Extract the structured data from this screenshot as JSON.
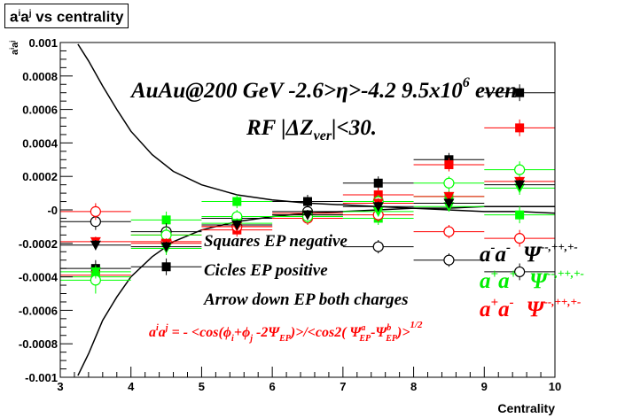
{
  "chart_data": {
    "type": "scatter",
    "title": "aiaj vs centrality",
    "title_parts": {
      "a1": "a",
      "i": "i",
      "a2": "a",
      "j": "j",
      "rest": " vs centrality"
    },
    "xlabel": "Centrality",
    "ylabel": "aiaj",
    "xlim": [
      3,
      10
    ],
    "ylim": [
      -0.001,
      0.001
    ],
    "xticks": [
      "3",
      "4",
      "5",
      "6",
      "7",
      "8",
      "9",
      "10"
    ],
    "yticks": [
      "-0.001",
      "-0.0008",
      "-0.0006",
      "-0.0004",
      "-0.0002",
      "-0",
      "0.0002",
      "0.0004",
      "0.0006",
      "0.0008",
      "0.001"
    ],
    "annotations": {
      "line1": "AuAu@200 GeV -2.6>η>-4.2  9.5x10",
      "line1_sup": "6",
      "line1_end": " even",
      "line2_a": "RF |ΔZ",
      "line2_sub": "ver",
      "line2_b": "|<30.",
      "legend_squares": "Squares EP negative",
      "legend_circles": "Cicles EP positive",
      "legend_arrows": "Arrow down EP both charges",
      "formula_a": "a",
      "formula_i": "i",
      "formula_j": "j",
      "formula_body": " = - <cos(ϕ",
      "formula_phi_j": "+ϕ",
      "formula_psi": " -2Ψ",
      "formula_ep": "EP",
      "formula_mid": ")>/<cos2( Ψ",
      "formula_a_sup": "a",
      "formula_minus": "-Ψ",
      "formula_b_sup": "b",
      "formula_end": ")>",
      "formula_power": "1/2",
      "label_mm": "a",
      "label_mm_sup": "-",
      "label_mm_psi": "Ψ",
      "label_mm_psi_sup": "--,++,+-",
      "label_pp": "a",
      "label_pp_sup": "+",
      "label_pp_psi": "Ψ",
      "label_pp_psi_sup": "--,++,+-",
      "label_pm_sup1": "+",
      "label_pm_sup2": "-",
      "label_pm_psi": "Ψ",
      "label_pm_psi_sup": "--,++,+-"
    },
    "colors": {
      "black": "#000000",
      "red": "#ff0000",
      "green": "#00ff00"
    },
    "series": [
      {
        "marker": "square",
        "color": "#000000",
        "x": [
          3.5,
          4.5,
          5.5,
          6.5,
          7.5,
          8.5,
          9.5
        ],
        "y": [
          -0.00035,
          -0.00034,
          -5e-05,
          5e-05,
          0.00016,
          0.0003,
          0.0007
        ],
        "err": [
          5e-05,
          5e-05,
          4e-05,
          4e-05,
          4e-05,
          4e-05,
          5e-05
        ]
      },
      {
        "marker": "square",
        "color": "#ff0000",
        "x": [
          3.5,
          4.5,
          5.5,
          6.5,
          7.5,
          8.5,
          9.5
        ],
        "y": [
          -0.00039,
          -0.00015,
          -0.00012,
          -2e-05,
          9e-05,
          0.00027,
          0.00049
        ],
        "err": [
          5e-05,
          5e-05,
          4e-05,
          4e-05,
          4e-05,
          4e-05,
          5e-05
        ]
      },
      {
        "marker": "square",
        "color": "#00ff00",
        "x": [
          3.5,
          4.5,
          5.5,
          6.5,
          7.5,
          8.5,
          9.5
        ],
        "y": [
          -0.0004,
          -6e-05,
          5e-05,
          -4e-05,
          -5e-05,
          8e-05,
          -3e-05
        ],
        "err": [
          5e-05,
          5e-05,
          4e-05,
          4e-05,
          4e-05,
          4e-05,
          5e-05
        ]
      },
      {
        "marker": "circle",
        "color": "#000000",
        "x": [
          3.5,
          4.5,
          5.5,
          6.5,
          7.5,
          8.5,
          9.5
        ],
        "y": [
          -7e-05,
          -0.00013,
          -5e-05,
          -1e-05,
          -0.00022,
          -0.0003,
          -0.00037
        ],
        "err": [
          5e-05,
          5e-05,
          4e-05,
          4e-05,
          4e-05,
          4e-05,
          5e-05
        ]
      },
      {
        "marker": "circle",
        "color": "#ff0000",
        "x": [
          3.5,
          4.5,
          5.5,
          6.5,
          7.5,
          8.5,
          9.5
        ],
        "y": [
          -1e-05,
          -0.00019,
          -0.0001,
          -5e-05,
          -3e-05,
          -0.00013,
          -0.00017
        ],
        "err": [
          5e-05,
          5e-05,
          4e-05,
          4e-05,
          4e-05,
          4e-05,
          5e-05
        ]
      },
      {
        "marker": "circle",
        "color": "#00ff00",
        "x": [
          3.5,
          4.5,
          5.5,
          6.5,
          7.5,
          8.5,
          9.5
        ],
        "y": [
          -0.00042,
          -0.00015,
          -4e-05,
          -4e-05,
          5e-05,
          0.00016,
          0.00024
        ],
        "err": [
          8e-05,
          5e-05,
          4e-05,
          4e-05,
          4e-05,
          4e-05,
          5e-05
        ]
      },
      {
        "marker": "triangle-down",
        "color": "#ff0000",
        "x": [
          3.5,
          4.5,
          5.5,
          6.5,
          7.5,
          8.5,
          9.5
        ],
        "y": [
          -0.00019,
          -0.0002,
          -0.0001,
          -3e-05,
          4e-05,
          8e-05,
          0.00017
        ],
        "err": [
          3e-05,
          3e-05,
          3e-05,
          3e-05,
          3e-05,
          3e-05,
          3e-05
        ]
      },
      {
        "marker": "triangle-down",
        "color": "#00ff00",
        "x": [
          3.5,
          4.5,
          5.5,
          6.5,
          7.5,
          8.5,
          9.5
        ],
        "y": [
          -0.00037,
          -0.00023,
          -8e-05,
          -3e-05,
          -1e-05,
          2e-05,
          0.00013
        ],
        "err": [
          4e-05,
          4e-05,
          3e-05,
          3e-05,
          3e-05,
          3e-05,
          4e-05
        ]
      },
      {
        "marker": "triangle-down",
        "color": "#000000",
        "x": [
          3.5,
          4.5,
          5.5,
          6.5,
          7.5,
          8.5,
          9.5
        ],
        "y": [
          -0.00021,
          -0.00022,
          -9e-05,
          -3e-05,
          2e-05,
          4e-05,
          0.00015
        ],
        "err": [
          3e-05,
          3e-05,
          3e-05,
          3e-05,
          3e-05,
          3e-05,
          3e-05
        ]
      }
    ],
    "curves": [
      {
        "name": "upper",
        "x": [
          3.25,
          3.4,
          3.6,
          3.8,
          4.0,
          4.3,
          4.6,
          5.0,
          5.5,
          6.0,
          6.5,
          7.0,
          7.5,
          8.0,
          8.5,
          9.0,
          9.5,
          10.0
        ],
        "y": [
          0.00099,
          0.00089,
          0.00074,
          0.0006,
          0.00047,
          0.00033,
          0.00023,
          0.00015,
          9e-05,
          6e-05,
          4e-05,
          3e-05,
          2e-05,
          1e-05,
          0.0,
          -1e-05,
          -1e-05,
          -2e-05
        ]
      },
      {
        "name": "lower",
        "x": [
          3.25,
          3.4,
          3.6,
          3.8,
          4.0,
          4.3,
          4.6,
          5.0,
          5.5,
          6.0,
          6.5,
          7.0,
          7.5,
          8.0,
          8.5,
          9.0,
          9.5,
          10.0
        ],
        "y": [
          -0.00099,
          -0.00086,
          -0.00066,
          -0.00052,
          -0.0004,
          -0.00028,
          -0.00019,
          -0.00012,
          -7e-05,
          -4e-05,
          -2e-05,
          -1e-05,
          0.0,
          1e-05,
          1e-05,
          2e-05,
          2e-05,
          2e-05
        ]
      }
    ],
    "grid": false
  }
}
